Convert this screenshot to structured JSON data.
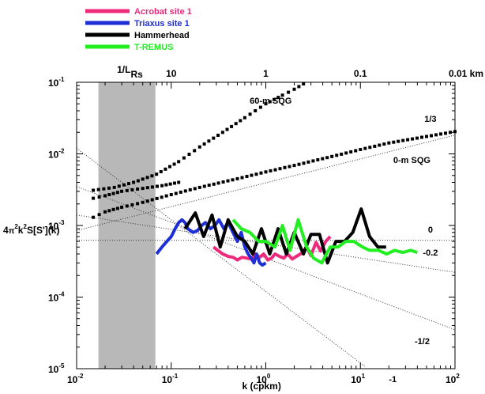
{
  "chart_data": {
    "type": "line",
    "xscale": "log",
    "yscale": "log",
    "xlim": [
      0.01,
      100
    ],
    "ylim": [
      1e-05,
      0.1
    ],
    "xlabel": "k  (cpkm)",
    "ylabel": "4π²k²S[S'](k)",
    "ylabel_parts": {
      "a": "4",
      "pi": "π",
      "s1": "2",
      "b": "k",
      "s2": "2",
      "c": "S[S'](k)"
    },
    "x_ticks": [
      {
        "label": "10",
        "exp": "-2",
        "value": 0.01
      },
      {
        "label": "10",
        "exp": "-1",
        "value": 0.1
      },
      {
        "label": "10",
        "exp": "0",
        "value": 1
      },
      {
        "label": "10",
        "exp": "1",
        "value": 10
      },
      {
        "label": "10",
        "exp": "2",
        "value": 100
      }
    ],
    "y_ticks": [
      {
        "label": "10",
        "exp": "-5",
        "value": 1e-05
      },
      {
        "label": "10",
        "exp": "-4",
        "value": 0.0001
      },
      {
        "label": "10",
        "exp": "-3",
        "value": 0.001
      },
      {
        "label": "10",
        "exp": "-2",
        "value": 0.01
      },
      {
        "label": "10",
        "exp": "-1",
        "value": 0.1
      }
    ],
    "top_axis": {
      "labels": [
        {
          "text": "10",
          "at_k": 0.1
        },
        {
          "text": "1",
          "at_k": 1
        },
        {
          "text": "0.1",
          "at_k": 10
        },
        {
          "text": "0.01 km",
          "at_k": 100
        }
      ],
      "rossby_label": "1/L",
      "rossby_sub": "Rs"
    },
    "shaded_band": {
      "k_from": 0.017,
      "k_to": 0.068,
      "color": "#b8b8b8"
    },
    "legend": [
      {
        "name": "Acrobat site 1",
        "color": "#ee2a7b"
      },
      {
        "name": "Triaxus site 1",
        "color": "#1f2fd6"
      },
      {
        "name": "Hammerhead",
        "color": "#000000"
      },
      {
        "name": "T-REMUS",
        "color": "#22ee22"
      }
    ],
    "series": [
      {
        "name": "Acrobat site 1",
        "color": "#ee2a7b",
        "x": [
          0.28,
          0.31,
          0.35,
          0.4,
          0.45,
          0.5,
          0.56,
          0.63,
          0.7,
          0.78,
          0.86,
          0.95,
          1.05,
          1.15,
          1.25,
          1.4,
          1.55,
          1.7,
          1.9,
          2.1,
          2.4,
          2.7,
          3.0,
          3.4,
          3.8,
          4.3,
          4.8
        ],
        "y": [
          0.0005,
          0.00045,
          0.0004,
          0.00037,
          0.00036,
          0.00033,
          0.00036,
          0.00035,
          0.00034,
          0.0004,
          0.00036,
          0.0004,
          0.00033,
          0.00035,
          0.0004,
          0.00037,
          0.00035,
          0.0004,
          0.00034,
          0.00037,
          0.00041,
          0.0005,
          0.00038,
          0.00058,
          0.00044,
          0.0006,
          0.0007
        ]
      },
      {
        "name": "Triaxus site 1",
        "color": "#1f2fd6",
        "x": [
          0.07,
          0.075,
          0.08,
          0.09,
          0.1,
          0.11,
          0.12,
          0.13,
          0.14,
          0.15,
          0.17,
          0.19,
          0.21,
          0.23,
          0.26,
          0.29,
          0.32,
          0.36,
          0.4,
          0.45,
          0.5,
          0.55,
          0.6,
          0.65,
          0.7,
          0.75,
          0.8,
          0.86,
          0.92,
          1.0
        ],
        "y": [
          0.0004,
          0.00045,
          0.0005,
          0.0006,
          0.0007,
          0.0009,
          0.0011,
          0.0012,
          0.0011,
          0.0009,
          0.0008,
          0.00085,
          0.001,
          0.0011,
          0.0009,
          0.001,
          0.0012,
          0.0009,
          0.0011,
          0.0008,
          0.0006,
          0.0008,
          0.0005,
          0.0004,
          0.00035,
          0.0003,
          0.0004,
          0.0003,
          0.00028,
          0.0003
        ]
      },
      {
        "name": "Hammerhead",
        "color": "#000000",
        "x": [
          0.14,
          0.18,
          0.22,
          0.27,
          0.33,
          0.4,
          0.5,
          0.6,
          0.73,
          0.9,
          1.1,
          1.35,
          1.65,
          2.0,
          2.5,
          3.0,
          3.7,
          4.5,
          5.5,
          6.8,
          8.3,
          10.2,
          12.5,
          15.3,
          18.7
        ],
        "y": [
          0.0009,
          0.0015,
          0.0007,
          0.0014,
          0.0005,
          0.0012,
          0.0007,
          0.0006,
          0.0004,
          0.0009,
          0.0004,
          0.0009,
          0.0004,
          0.0008,
          0.0004,
          0.00075,
          0.00075,
          0.0003,
          0.0006,
          0.0006,
          0.0008,
          0.0017,
          0.0007,
          0.0005,
          0.0005
        ]
      },
      {
        "name": "T-REMUS",
        "color": "#22ee22",
        "x": [
          0.45,
          0.55,
          0.68,
          0.84,
          1.0,
          1.25,
          1.5,
          1.8,
          2.2,
          2.7,
          3.2,
          3.9,
          4.8,
          5.8,
          7.0,
          8.5,
          10.5,
          12.5,
          15.5,
          19.0,
          23.0,
          28.0,
          34.0,
          40.0
        ],
        "y": [
          0.0012,
          0.0009,
          0.0008,
          0.0006,
          0.0006,
          0.0005,
          0.001,
          0.00045,
          0.0012,
          0.0005,
          0.00035,
          0.0003,
          0.0005,
          0.0005,
          0.0006,
          0.0006,
          0.0005,
          0.00045,
          0.00045,
          0.0004,
          0.00045,
          0.00042,
          0.00045,
          0.00042
        ]
      }
    ],
    "model_curves": [
      {
        "label": "60-m SQG",
        "style": "dashed-squares",
        "x": [
          0.015,
          0.025,
          0.04,
          0.07,
          0.12,
          0.2,
          0.35,
          0.6,
          1.0,
          1.5,
          2.0,
          2.5
        ],
        "y": [
          0.0031,
          0.0034,
          0.004,
          0.0052,
          0.0078,
          0.0125,
          0.02,
          0.032,
          0.05,
          0.066,
          0.08,
          0.095
        ]
      },
      {
        "label": "0-m SQG",
        "style": "dashed-squares",
        "x": [
          0.015,
          0.02,
          0.03,
          0.05,
          0.1,
          0.2,
          0.5,
          1,
          2,
          5,
          10,
          20,
          50,
          100
        ],
        "y": [
          0.0013,
          0.00155,
          0.0018,
          0.0021,
          0.0027,
          0.0034,
          0.0045,
          0.0056,
          0.0069,
          0.0092,
          0.0115,
          0.0142,
          0.0175,
          0.0205
        ]
      },
      {
        "label": "",
        "style": "dashed-squares",
        "x": [
          0.015,
          0.02,
          0.03,
          0.05,
          0.08,
          0.12
        ],
        "y": [
          0.0024,
          0.0026,
          0.003,
          0.0033,
          0.0036,
          0.004
        ]
      }
    ],
    "reference_slopes": [
      {
        "label": "1/3",
        "slope": 0.3333,
        "k0": 0.01,
        "y0": 0.00085,
        "k1": 100,
        "label_at_k": 55,
        "label_at_y": 0.028
      },
      {
        "label": "0",
        "slope": 0,
        "k0": 0.01,
        "y0": 0.00062,
        "k1": 100,
        "label_at_k": 55,
        "label_at_y": 0.0008
      },
      {
        "label": "-0.2",
        "slope": -0.2,
        "k0": 0.01,
        "y0": 0.0014,
        "k1": 100,
        "label_at_k": 55,
        "label_at_y": 0.00038
      },
      {
        "label": "-1/2",
        "slope": -0.5,
        "k0": 0.01,
        "y0": 0.0035,
        "k1": 100,
        "label_at_k": 45,
        "label_at_y": 2.2e-05
      },
      {
        "label": "-1",
        "slope": -1,
        "k0": 0.01,
        "y0": 0.012,
        "k1": 100,
        "label_at_k": 22,
        "label_at_y": 6.5e-06
      }
    ]
  }
}
